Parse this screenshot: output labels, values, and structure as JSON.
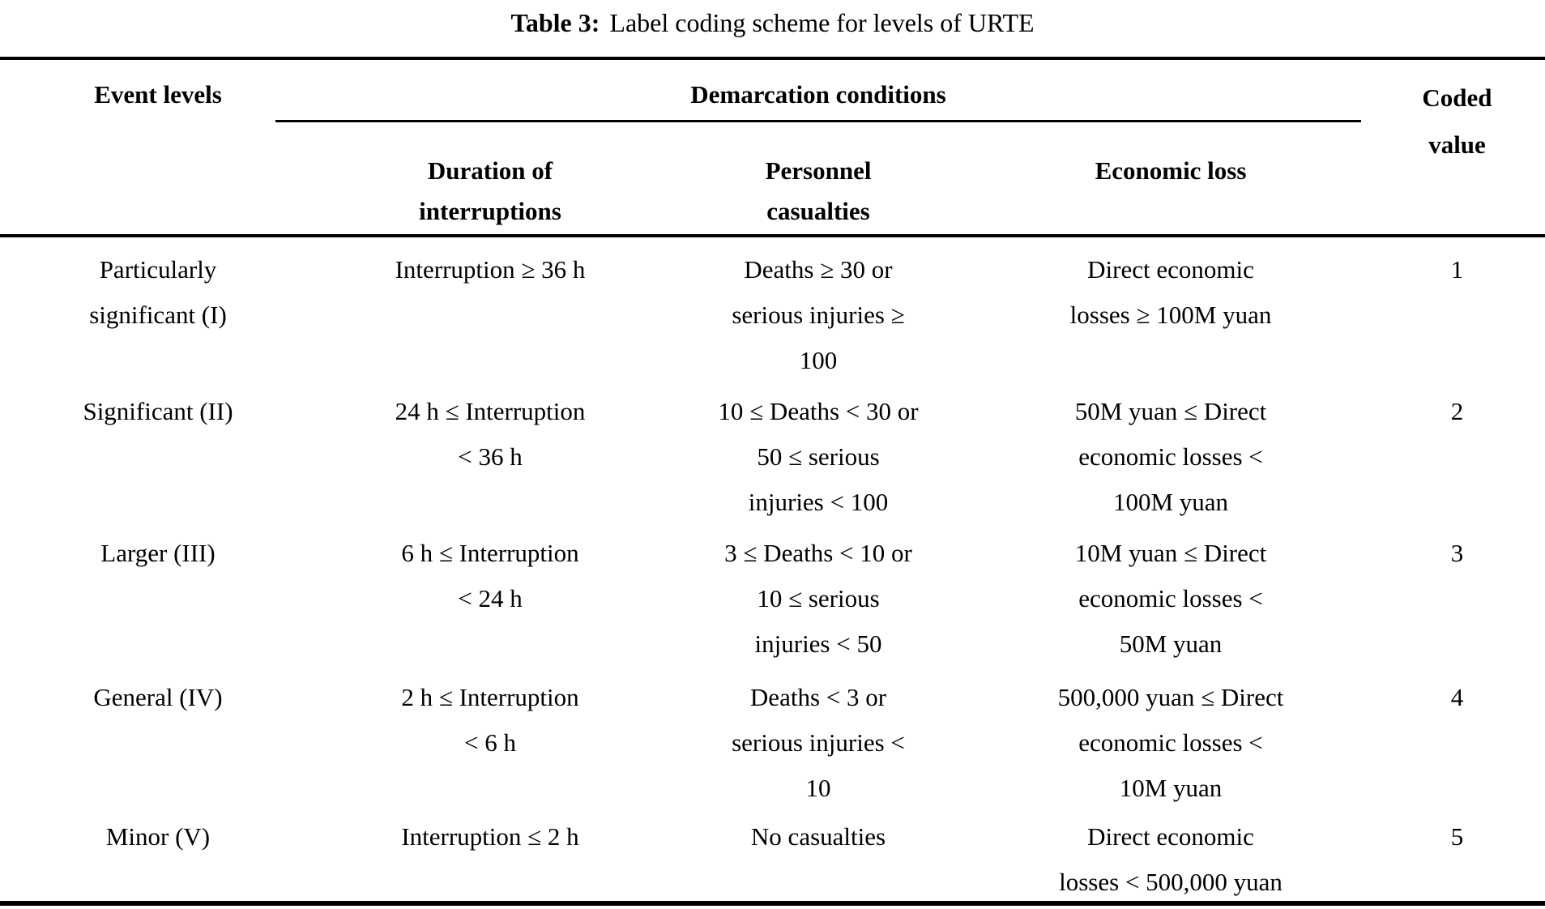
{
  "title": {
    "label": "Table 3:",
    "text": "Label coding scheme for levels of URTE"
  },
  "table": {
    "columns": {
      "event_levels": "Event levels",
      "demarcation": "Demarcation conditions",
      "sub": [
        "Duration of\ninterruptions",
        "Personnel\ncasualties",
        "Economic loss"
      ],
      "coded_value": "Coded\nvalue"
    },
    "rows": [
      {
        "event_level": "Particularly\nsignificant (I)",
        "duration": "Interruption ≥ 36 h",
        "casualties": "Deaths ≥ 30 or\nserious injuries ≥\n100",
        "economic_loss": "Direct economic\nlosses ≥ 100M yuan",
        "coded_value": "1"
      },
      {
        "event_level": "Significant (II)",
        "duration": "24 h ≤ Interruption\n< 36 h",
        "casualties": "10 ≤ Deaths < 30 or\n50 ≤ serious\ninjuries < 100",
        "economic_loss": "50M yuan ≤ Direct\neconomic losses <\n100M yuan",
        "coded_value": "2"
      },
      {
        "event_level": "Larger (III)",
        "duration": "6 h ≤ Interruption\n< 24 h",
        "casualties": "3 ≤ Deaths < 10 or\n10 ≤ serious\ninjuries < 50",
        "economic_loss": "10M yuan ≤ Direct\neconomic losses <\n50M yuan",
        "coded_value": "3"
      },
      {
        "event_level": "General (IV)",
        "duration": "2 h ≤ Interruption\n< 6 h",
        "casualties": "Deaths < 3 or\nserious injuries <\n10",
        "economic_loss": "500,000 yuan ≤ Direct\neconomic losses <\n10M yuan",
        "coded_value": "4"
      },
      {
        "event_level": "Minor (V)",
        "duration": "Interruption ≤ 2 h",
        "casualties": "No casualties",
        "economic_loss": "Direct economic\nlosses < 500,000 yuan",
        "coded_value": "5"
      }
    ]
  },
  "colors": {
    "text": "#000000",
    "background": "#ffffff",
    "rule": "#000000"
  }
}
